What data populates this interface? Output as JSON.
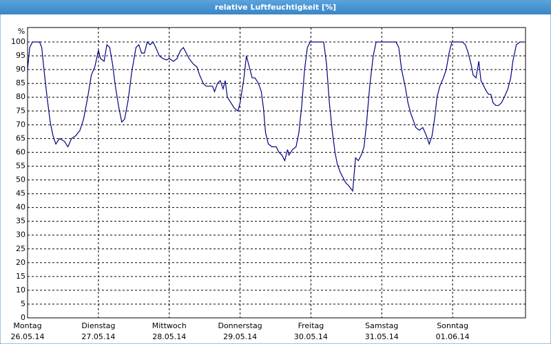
{
  "chart_data": {
    "type": "line",
    "title": "relative Luftfeuchtigkeit [%]",
    "y_label": "%",
    "xlim": [
      0,
      7
    ],
    "ylim": [
      0,
      105
    ],
    "xticks": [
      {
        "value": 0,
        "label": "Montag"
      },
      {
        "value": 1,
        "label": "Dienstag"
      },
      {
        "value": 2,
        "label": "Mittwoch"
      },
      {
        "value": 3,
        "label": "Donnerstag"
      },
      {
        "value": 4,
        "label": "Freitag"
      },
      {
        "value": 5,
        "label": "Samstag"
      },
      {
        "value": 6,
        "label": "Sonntag"
      }
    ],
    "xtick_dates": [
      "26.05.14",
      "27.05.14",
      "28.05.14",
      "29.05.14",
      "30.05.14",
      "31.05.14",
      "01.06.14"
    ],
    "yticks": [
      0,
      5,
      10,
      15,
      20,
      25,
      30,
      35,
      40,
      45,
      50,
      55,
      60,
      65,
      70,
      75,
      80,
      85,
      90,
      95,
      100
    ],
    "grid": true,
    "series": [
      {
        "color": "#00007f",
        "x": [
          0,
          0.03,
          0.07,
          0.17,
          0.2,
          0.24,
          0.28,
          0.32,
          0.36,
          0.4,
          0.45,
          0.52,
          0.57,
          0.62,
          0.68,
          0.74,
          0.79,
          0.85,
          0.9,
          0.95,
          1.0,
          1.03,
          1.08,
          1.12,
          1.16,
          1.2,
          1.24,
          1.29,
          1.33,
          1.37,
          1.42,
          1.47,
          1.53,
          1.57,
          1.61,
          1.65,
          1.69,
          1.73,
          1.77,
          1.81,
          1.86,
          1.91,
          1.96,
          2.0,
          2.06,
          2.11,
          2.16,
          2.2,
          2.24,
          2.28,
          2.34,
          2.39,
          2.43,
          2.48,
          2.52,
          2.57,
          2.61,
          2.64,
          2.68,
          2.72,
          2.76,
          2.79,
          2.82,
          2.87,
          2.92,
          2.97,
          3.0,
          3.05,
          3.09,
          3.13,
          3.17,
          3.21,
          3.26,
          3.3,
          3.33,
          3.36,
          3.4,
          3.45,
          3.51,
          3.55,
          3.59,
          3.63,
          3.67,
          3.69,
          3.74,
          3.79,
          3.83,
          3.87,
          3.91,
          3.95,
          3.99,
          4.03,
          4.1,
          4.18,
          4.22,
          4.26,
          4.3,
          4.34,
          4.37,
          4.41,
          4.45,
          4.49,
          4.53,
          4.56,
          4.59,
          4.63,
          4.67,
          4.71,
          4.75,
          4.79,
          4.83,
          4.88,
          4.92,
          5.0,
          5.1,
          5.2,
          5.24,
          5.28,
          5.33,
          5.37,
          5.41,
          5.44,
          5.48,
          5.53,
          5.58,
          5.63,
          5.67,
          5.71,
          5.75,
          5.78,
          5.82,
          5.87,
          5.91,
          5.95,
          5.99,
          6.05,
          6.14,
          6.18,
          6.22,
          6.26,
          6.29,
          6.33,
          6.37,
          6.4,
          6.44,
          6.48,
          6.51,
          6.54,
          6.57,
          6.61,
          6.65,
          6.69,
          6.73,
          6.78,
          6.82,
          6.85,
          6.9,
          6.95,
          7.0
        ],
        "values": [
          90,
          98,
          100,
          100,
          98,
          88,
          79,
          71,
          66,
          63,
          65,
          64,
          62,
          65,
          66,
          68,
          72,
          80,
          88,
          91,
          97,
          94,
          93,
          99,
          98,
          92,
          84,
          76,
          71,
          72,
          79,
          89,
          98,
          99,
          96,
          96,
          100,
          99,
          100,
          98,
          95,
          94,
          93.5,
          94,
          93,
          94,
          97,
          98,
          96,
          94,
          92,
          91,
          88,
          85,
          84,
          84,
          84,
          82,
          85,
          86,
          83,
          86,
          80,
          78,
          76,
          75,
          78,
          86,
          95,
          91,
          87,
          87,
          85,
          82,
          76,
          67,
          63,
          62,
          62,
          60,
          59,
          57,
          61,
          59,
          61,
          62,
          67,
          77,
          90,
          98,
          100,
          100,
          100,
          100,
          92,
          78,
          68,
          60,
          56,
          53,
          51,
          49,
          48,
          47,
          46,
          58,
          57,
          59,
          62,
          72,
          84,
          95,
          100,
          100,
          100,
          100,
          98,
          90,
          84,
          78,
          74,
          72,
          69,
          68,
          69,
          66,
          63,
          66,
          73,
          80,
          84,
          87,
          90,
          96,
          100,
          100,
          100,
          99,
          96,
          92,
          88,
          87,
          93,
          86,
          84,
          82,
          81,
          81,
          78,
          77,
          77,
          78,
          80,
          83,
          87,
          93,
          99,
          100,
          100
        ]
      }
    ]
  }
}
